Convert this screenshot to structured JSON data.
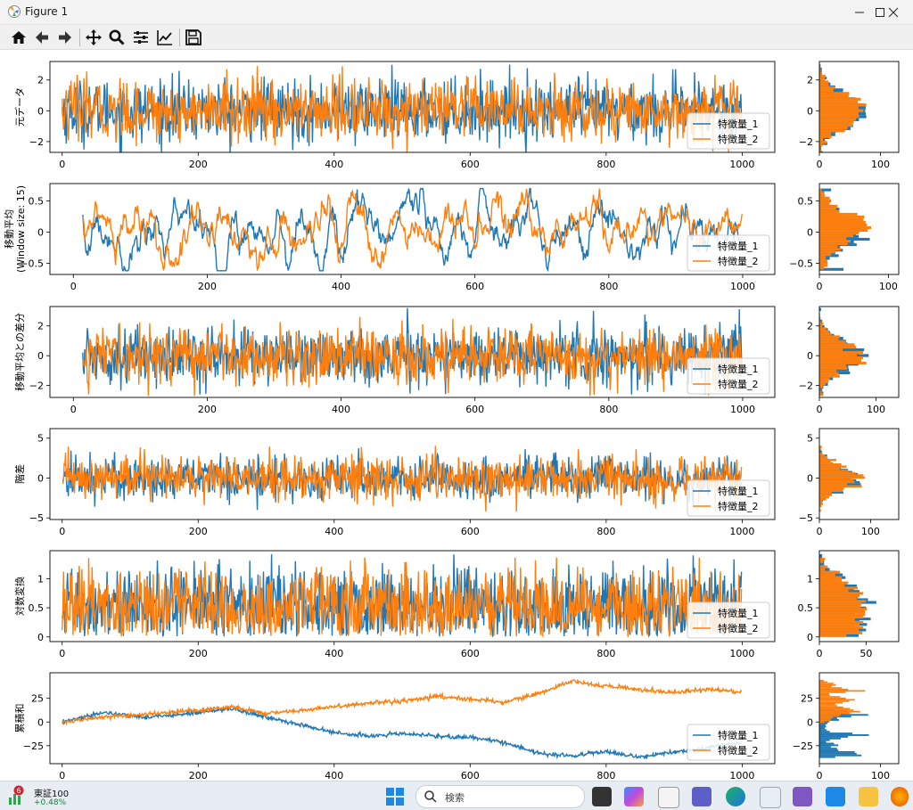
{
  "window": {
    "title": "Figure 1",
    "controls": [
      "minimize",
      "maximize",
      "close"
    ]
  },
  "toolbar": {
    "buttons": [
      "home-icon",
      "back-icon",
      "forward-icon",
      "pan-icon",
      "zoom-icon",
      "configure-subplots-icon",
      "edit-axis-icon",
      "save-icon"
    ]
  },
  "chart_data": [
    {
      "type": "line",
      "ylabel": "元データ",
      "xlim": [
        -18,
        1048
      ],
      "ylim": [
        -2.7,
        3.2
      ],
      "xticks": [
        0,
        200,
        400,
        600,
        800,
        1000
      ],
      "yticks": [
        -2,
        0,
        2
      ],
      "x_range": [
        0,
        999
      ],
      "series": [
        {
          "name": "特徴量_1",
          "color": "#1f77b4",
          "pattern": "white-noise",
          "mean": 0,
          "std": 1.0,
          "min": -2.8,
          "max": 3.1
        },
        {
          "name": "特徴量_2",
          "color": "#ff7f0e",
          "pattern": "white-noise",
          "mean": 0,
          "std": 1.0,
          "min": -2.7,
          "max": 2.9
        }
      ],
      "legend": "lower-right",
      "hist": {
        "orientation": "horizontal",
        "xlim": [
          0,
          130
        ],
        "xticks": [
          0,
          100
        ],
        "yticks": [
          -2,
          0,
          2
        ]
      }
    },
    {
      "type": "line",
      "ylabel": "移動平均\n(Window size: 15)",
      "xlim": [
        -35,
        1048
      ],
      "ylim": [
        -0.68,
        0.78
      ],
      "xticks": [
        0,
        200,
        400,
        600,
        800,
        1000
      ],
      "yticks": [
        -0.5,
        0.0,
        0.5
      ],
      "x_range": [
        14,
        999
      ],
      "series": [
        {
          "name": "特徴量_1",
          "color": "#1f77b4",
          "pattern": "moving-average",
          "mean": 0,
          "std": 0.26,
          "min": -0.62,
          "max": 0.7
        },
        {
          "name": "特徴量_2",
          "color": "#ff7f0e",
          "pattern": "moving-average",
          "mean": 0,
          "std": 0.26,
          "min": -0.6,
          "max": 0.75
        }
      ],
      "legend": "lower-right",
      "hist": {
        "orientation": "horizontal",
        "xlim": [
          0,
          115
        ],
        "xticks": [
          0,
          100
        ],
        "yticks": [
          -0.5,
          0.0,
          0.5
        ]
      }
    },
    {
      "type": "line",
      "ylabel": "移動平均との差分",
      "xlim": [
        -35,
        1048
      ],
      "ylim": [
        -2.8,
        3.3
      ],
      "xticks": [
        0,
        200,
        400,
        600,
        800,
        1000
      ],
      "yticks": [
        -2,
        0,
        2
      ],
      "x_range": [
        14,
        999
      ],
      "series": [
        {
          "name": "特徴量_1",
          "color": "#1f77b4",
          "pattern": "white-noise",
          "mean": 0,
          "std": 0.95,
          "min": -2.6,
          "max": 3.2
        },
        {
          "name": "特徴量_2",
          "color": "#ff7f0e",
          "pattern": "white-noise",
          "mean": 0,
          "std": 0.95,
          "min": -2.7,
          "max": 2.6
        }
      ],
      "legend": "lower-right",
      "hist": {
        "orientation": "horizontal",
        "xlim": [
          0,
          140
        ],
        "xticks": [
          0,
          100
        ],
        "yticks": [
          -2,
          0,
          2
        ]
      }
    },
    {
      "type": "line",
      "ylabel": "階差",
      "xlim": [
        -18,
        1048
      ],
      "ylim": [
        -5.2,
        6.2
      ],
      "xticks": [
        0,
        200,
        400,
        600,
        800,
        1000
      ],
      "yticks": [
        -5,
        0,
        5
      ],
      "x_range": [
        1,
        999
      ],
      "series": [
        {
          "name": "特徴量_1",
          "color": "#1f77b4",
          "pattern": "white-noise",
          "mean": 0,
          "std": 1.4,
          "min": -4.6,
          "max": 5.6
        },
        {
          "name": "特徴量_2",
          "color": "#ff7f0e",
          "pattern": "white-noise",
          "mean": 0,
          "std": 1.4,
          "min": -4.2,
          "max": 4.1
        }
      ],
      "legend": "lower-right",
      "hist": {
        "orientation": "horizontal",
        "xlim": [
          0,
          155
        ],
        "xticks": [
          0,
          100
        ],
        "yticks": [
          -5,
          0,
          5
        ]
      }
    },
    {
      "type": "line",
      "ylabel": "対数変換",
      "xlim": [
        -18,
        1048
      ],
      "ylim": [
        -0.08,
        1.48
      ],
      "xticks": [
        0,
        200,
        400,
        600,
        800,
        1000
      ],
      "yticks": [
        0.0,
        0.5,
        1.0
      ],
      "x_range": [
        0,
        999
      ],
      "series": [
        {
          "name": "特徴量_1",
          "color": "#1f77b4",
          "pattern": "log-abs-noise",
          "min": 0.0,
          "max": 1.42
        },
        {
          "name": "特徴量_2",
          "color": "#ff7f0e",
          "pattern": "log-abs-noise",
          "min": 0.0,
          "max": 1.36
        }
      ],
      "legend": "lower-right",
      "hist": {
        "orientation": "horizontal",
        "xlim": [
          0,
          85
        ],
        "xticks": [
          0,
          50
        ],
        "yticks": [
          0.0,
          0.5,
          1.0
        ]
      }
    },
    {
      "type": "line",
      "ylabel": "累積和",
      "xlim": [
        -18,
        1048
      ],
      "ylim": [
        -44,
        52
      ],
      "xticks": [
        0,
        200,
        400,
        600,
        800,
        1000
      ],
      "yticks": [
        -25,
        0,
        25
      ],
      "x_range": [
        0,
        999
      ],
      "series": [
        {
          "name": "特徴量_1",
          "color": "#1f77b4",
          "pattern": "cumulative-sum",
          "x": [
            0,
            60,
            120,
            200,
            250,
            300,
            350,
            400,
            450,
            500,
            550,
            600,
            650,
            700,
            750,
            800,
            850,
            900,
            950,
            1000
          ],
          "y": [
            0,
            10,
            5,
            10,
            14,
            5,
            -3,
            -11,
            -15,
            -12,
            -15,
            -16,
            -22,
            -33,
            -36,
            -31,
            -37,
            -32,
            -27,
            -22
          ]
        },
        {
          "name": "特徴量_2",
          "color": "#ff7f0e",
          "pattern": "cumulative-sum",
          "x": [
            0,
            60,
            120,
            200,
            250,
            300,
            350,
            400,
            450,
            500,
            550,
            600,
            650,
            700,
            750,
            800,
            850,
            900,
            950,
            1000
          ],
          "y": [
            0,
            5,
            8,
            12,
            16,
            9,
            12,
            16,
            20,
            22,
            27,
            24,
            21,
            30,
            43,
            38,
            34,
            31,
            35,
            31
          ]
        }
      ],
      "legend": "lower-right",
      "hist": {
        "orientation": "horizontal",
        "xlim": [
          0,
          130
        ],
        "xticks": [
          0,
          100
        ],
        "yticks": [
          -25,
          0,
          25
        ]
      }
    }
  ],
  "taskbar": {
    "stock": {
      "badge": "6",
      "name": "東証100",
      "change": "+0.48%"
    },
    "search_placeholder": "検索",
    "apps": [
      "task-view-icon",
      "copilot-icon",
      "notepad-icon",
      "teams-icon",
      "edge-icon",
      "snipping-tool-icon",
      "visual-studio-icon",
      "vscode-icon",
      "file-explorer-icon",
      "firefox-icon"
    ]
  }
}
